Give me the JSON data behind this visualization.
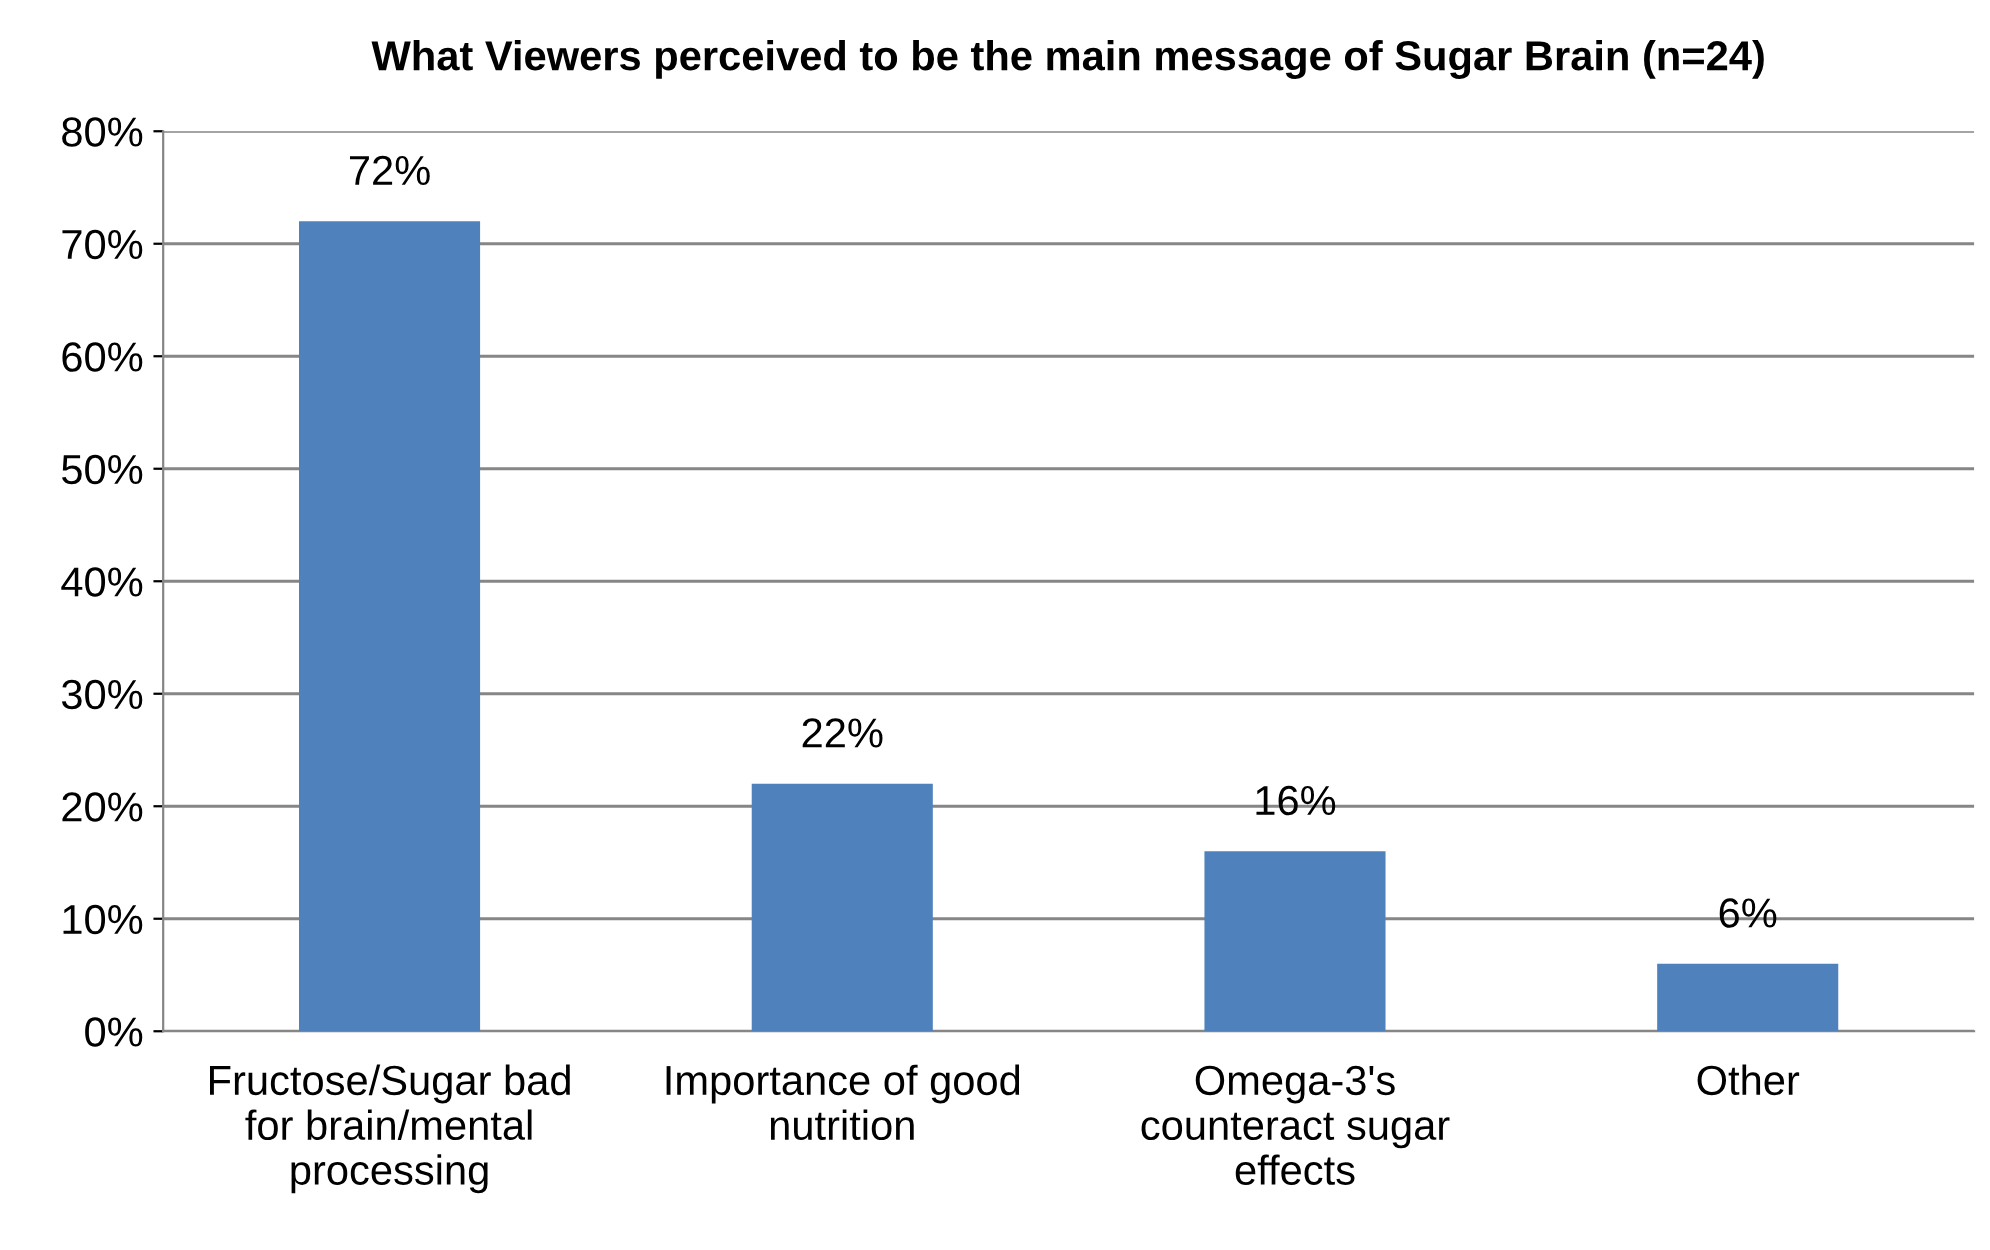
{
  "chart_data": {
    "type": "bar",
    "title": "What Viewers perceived to be the main message of Sugar Brain (n=24)",
    "categories": [
      "Fructose/Sugar bad\nfor brain/mental\nprocessing",
      "Importance of good\nnutrition",
      "Omega-3's\ncounteract sugar\neffects",
      "Other"
    ],
    "values": [
      72,
      22,
      16,
      6
    ],
    "value_labels": [
      "72%",
      "22%",
      "16%",
      "6%"
    ],
    "color": "#4f81bd",
    "ylim": [
      0,
      80
    ],
    "yticks": [
      {
        "value": 0,
        "label": "0%"
      },
      {
        "value": 10,
        "label": "10%"
      },
      {
        "value": 20,
        "label": "20%"
      },
      {
        "value": 30,
        "label": "30%"
      },
      {
        "value": 40,
        "label": "40%"
      },
      {
        "value": 50,
        "label": "50%"
      },
      {
        "value": 60,
        "label": "60%"
      },
      {
        "value": 70,
        "label": "70%"
      },
      {
        "value": 80,
        "label": "80%"
      }
    ],
    "grid": "y"
  }
}
